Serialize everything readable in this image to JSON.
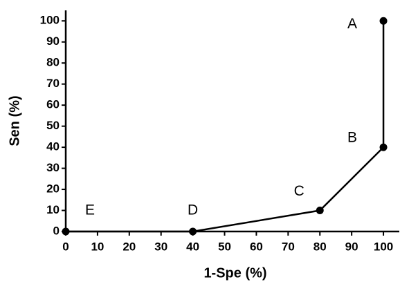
{
  "chart_data": {
    "type": "line",
    "x_label": "1-Spe (%)",
    "y_label": "Sen (%)",
    "x": [
      0,
      40,
      80,
      100,
      100
    ],
    "series": [
      {
        "color": "#000000",
        "values": [
          0,
          0,
          10,
          40,
          100
        ]
      }
    ],
    "point_labels": [
      "E",
      "D",
      "C",
      "B",
      "A"
    ],
    "xlim": [
      0,
      105
    ],
    "ylim": [
      0,
      105
    ],
    "xticks": [
      0,
      10,
      20,
      30,
      40,
      50,
      60,
      70,
      80,
      90,
      100
    ],
    "yticks": [
      0,
      10,
      20,
      30,
      40,
      50,
      60,
      70,
      80,
      90,
      100
    ],
    "grid": false
  }
}
